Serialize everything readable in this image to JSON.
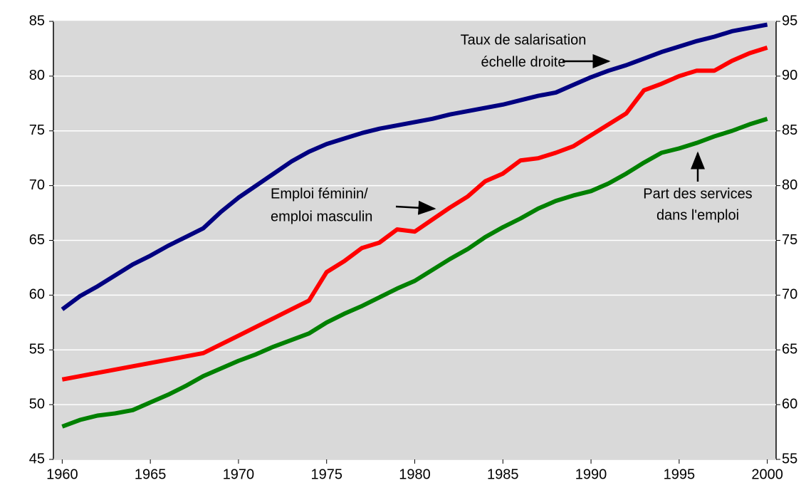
{
  "chart_data": {
    "type": "line",
    "x": [
      1960,
      1961,
      1962,
      1963,
      1964,
      1965,
      1966,
      1967,
      1968,
      1969,
      1970,
      1971,
      1972,
      1973,
      1974,
      1975,
      1976,
      1977,
      1978,
      1979,
      1980,
      1981,
      1982,
      1983,
      1984,
      1985,
      1986,
      1987,
      1988,
      1989,
      1990,
      1991,
      1992,
      1993,
      1994,
      1995,
      1996,
      1997,
      1998,
      1999,
      2000
    ],
    "xlim": [
      1959.5,
      2000.5
    ],
    "xticks": [
      1960,
      1965,
      1970,
      1975,
      1980,
      1985,
      1990,
      1995,
      2000
    ],
    "ylim": [
      45,
      85
    ],
    "yticks": [
      45,
      50,
      55,
      60,
      65,
      70,
      75,
      80,
      85
    ],
    "y2lim": [
      55,
      95
    ],
    "y2ticks": [
      55,
      60,
      65,
      70,
      75,
      80,
      85,
      90,
      95
    ],
    "grid": true,
    "series": [
      {
        "color": "#000080",
        "axis": "y2",
        "values": [
          68.7,
          69.9,
          70.8,
          71.8,
          72.8,
          73.6,
          74.5,
          75.3,
          76.1,
          77.6,
          78.9,
          80.0,
          81.1,
          82.2,
          83.1,
          83.8,
          84.3,
          84.8,
          85.2,
          85.5,
          85.8,
          86.1,
          86.5,
          86.8,
          87.1,
          87.4,
          87.8,
          88.2,
          88.5,
          89.2,
          89.9,
          90.5,
          91.0,
          91.6,
          92.2,
          92.7,
          93.2,
          93.6,
          94.1,
          94.4,
          94.7
        ]
      },
      {
        "color": "#ff0000",
        "values": [
          52.3,
          52.6,
          52.9,
          53.2,
          53.5,
          53.8,
          54.1,
          54.4,
          54.7,
          55.5,
          56.3,
          57.1,
          57.9,
          58.7,
          59.5,
          62.1,
          63.1,
          64.3,
          64.8,
          66.0,
          65.8,
          66.9,
          68.0,
          69.0,
          70.4,
          71.1,
          72.3,
          72.5,
          73.0,
          73.6,
          74.6,
          75.6,
          76.6,
          78.7,
          79.3,
          80.0,
          80.5,
          80.5,
          81.4,
          82.1,
          82.6
        ]
      },
      {
        "color": "#008000",
        "values": [
          48.0,
          48.6,
          49.0,
          49.2,
          49.5,
          50.2,
          50.9,
          51.7,
          52.6,
          53.3,
          54.0,
          54.6,
          55.3,
          55.9,
          56.5,
          57.5,
          58.3,
          59.0,
          59.8,
          60.6,
          61.3,
          62.3,
          63.3,
          64.2,
          65.3,
          66.2,
          67.0,
          67.9,
          68.6,
          69.1,
          69.5,
          70.2,
          71.1,
          72.1,
          73.0,
          73.4,
          73.9,
          74.5,
          75.0,
          75.6,
          76.1
        ]
      }
    ],
    "annotations": [
      {
        "lines": [
          "Taux de salarisation",
          "échelle droite"
        ]
      },
      {
        "lines": [
          "Emploi féminin/",
          "emploi masculin"
        ]
      },
      {
        "lines": [
          "Part des services",
          "dans l'emploi"
        ]
      }
    ]
  }
}
